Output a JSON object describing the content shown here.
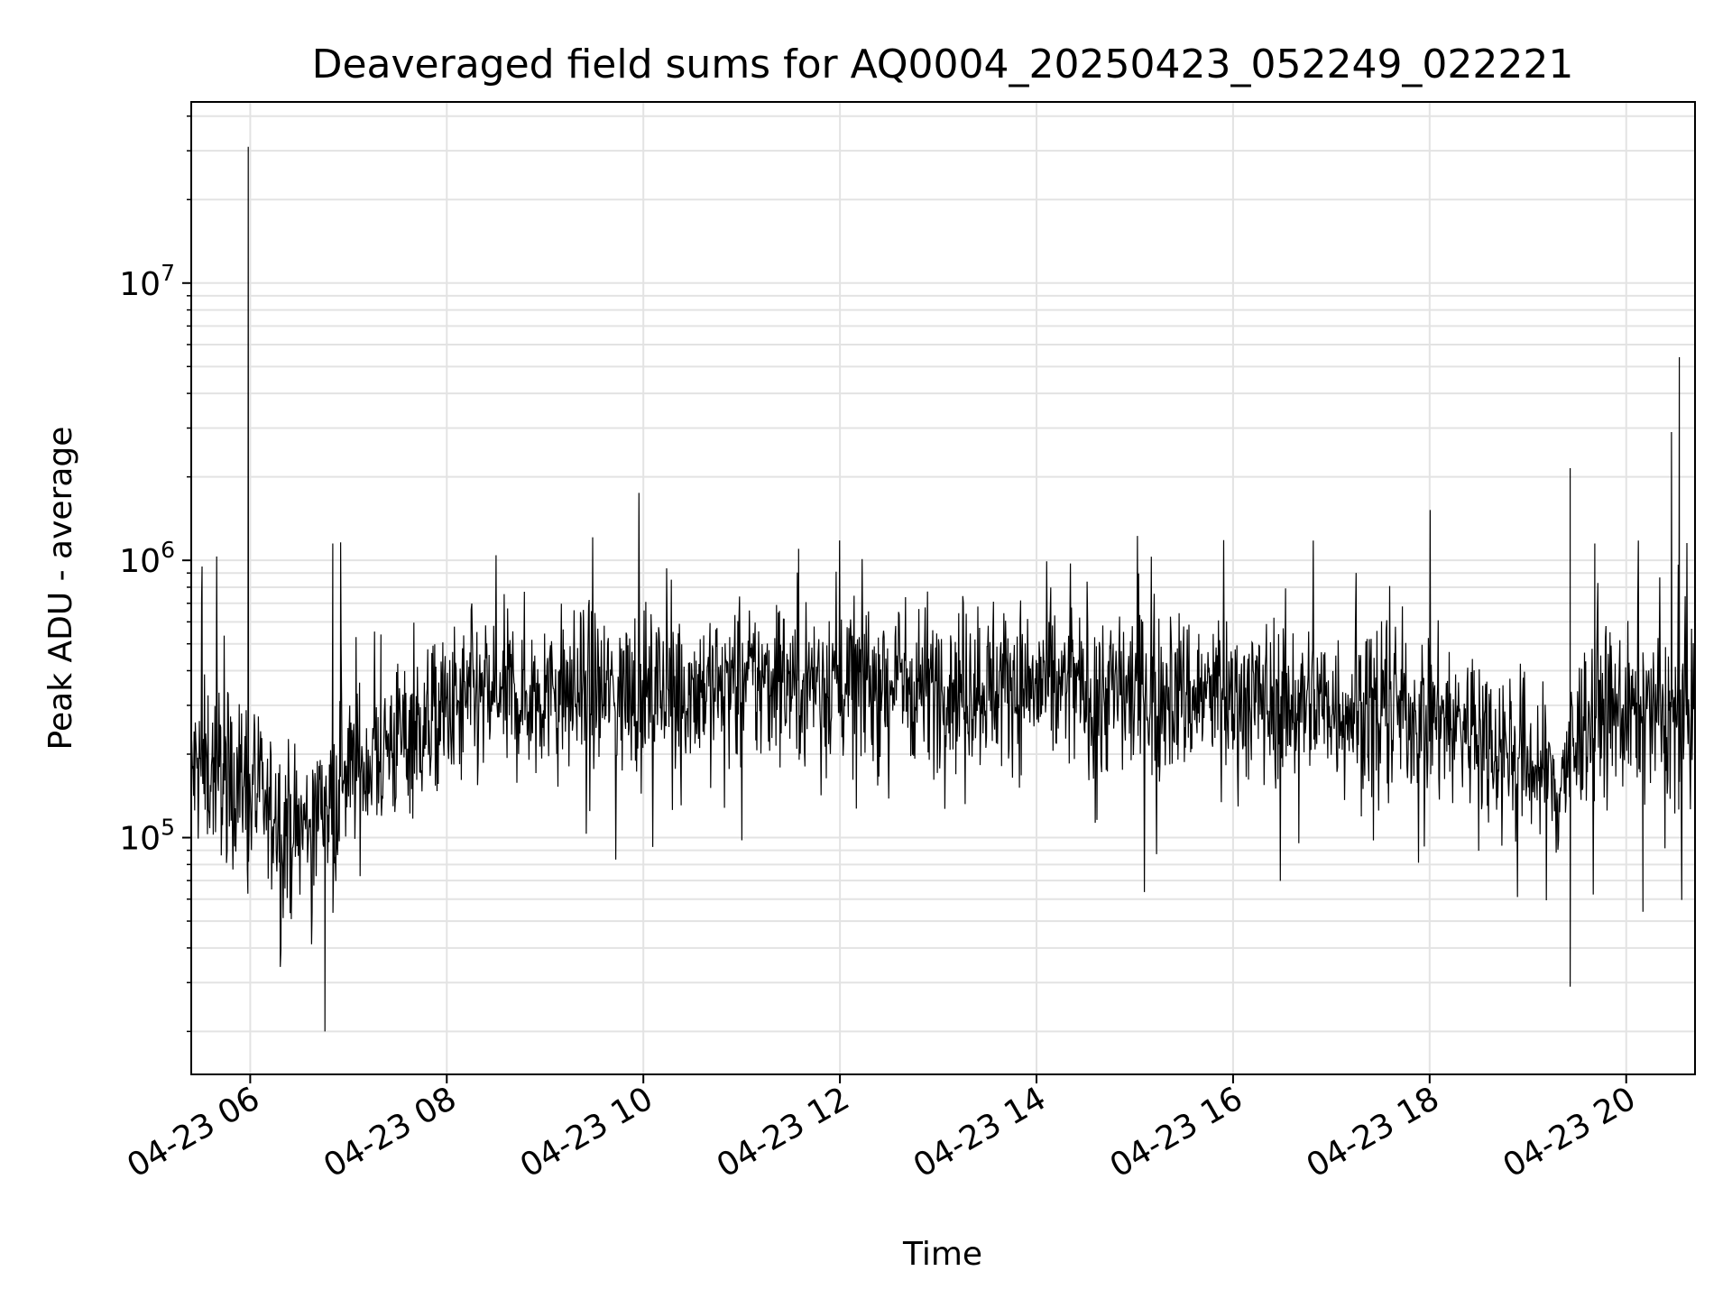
{
  "chart_data": {
    "type": "line",
    "title": "Deaveraged field sums for AQ0004_20250423_052249_022221",
    "xlabel": "Time",
    "ylabel": "Peak ADU - average",
    "x_axis": {
      "kind": "time",
      "range_hours": [
        5.4,
        20.7
      ],
      "ticks": [
        {
          "value": 6,
          "label": "04-23 06"
        },
        {
          "value": 8,
          "label": "04-23 08"
        },
        {
          "value": 10,
          "label": "04-23 10"
        },
        {
          "value": 12,
          "label": "04-23 12"
        },
        {
          "value": 14,
          "label": "04-23 14"
        },
        {
          "value": 16,
          "label": "04-23 16"
        },
        {
          "value": 18,
          "label": "04-23 18"
        },
        {
          "value": 20,
          "label": "04-23 20"
        }
      ]
    },
    "y_axis": {
      "scale": "log",
      "range": [
        14000,
        45000000
      ],
      "ticks": [
        {
          "value": 100000,
          "base": "10",
          "exp": "5"
        },
        {
          "value": 1000000,
          "base": "10",
          "exp": "6"
        },
        {
          "value": 10000000,
          "base": "10",
          "exp": "7"
        }
      ]
    },
    "grid": true,
    "series": [
      {
        "color": "#000000",
        "baseline_points": [
          [
            5.4,
            170000
          ],
          [
            5.6,
            180000
          ],
          [
            5.9,
            160000
          ],
          [
            6.2,
            120000
          ],
          [
            6.5,
            105000
          ],
          [
            6.8,
            140000
          ],
          [
            7.2,
            190000
          ],
          [
            7.6,
            240000
          ],
          [
            8.0,
            280000
          ],
          [
            8.5,
            320000
          ],
          [
            9.0,
            330000
          ],
          [
            9.5,
            330000
          ],
          [
            10.0,
            340000
          ],
          [
            10.5,
            350000
          ],
          [
            11.0,
            360000
          ],
          [
            11.5,
            370000
          ],
          [
            12.0,
            370000
          ],
          [
            12.5,
            370000
          ],
          [
            13.0,
            360000
          ],
          [
            13.5,
            360000
          ],
          [
            14.0,
            350000
          ],
          [
            14.5,
            340000
          ],
          [
            15.0,
            340000
          ],
          [
            15.5,
            330000
          ],
          [
            16.0,
            320000
          ],
          [
            16.5,
            310000
          ],
          [
            17.0,
            300000
          ],
          [
            17.5,
            290000
          ],
          [
            18.0,
            280000
          ],
          [
            18.5,
            240000
          ],
          [
            19.0,
            190000
          ],
          [
            19.3,
            150000
          ],
          [
            19.6,
            280000
          ],
          [
            20.0,
            280000
          ],
          [
            20.4,
            270000
          ],
          [
            20.7,
            280000
          ]
        ],
        "noise_spread_decades": 0.27,
        "spikes": [
          [
            5.51,
            950000
          ],
          [
            5.98,
            31000000
          ],
          [
            6.76,
            20000
          ],
          [
            6.84,
            1150000
          ],
          [
            6.92,
            1160000
          ],
          [
            7.33,
            540000
          ],
          [
            11.58,
            1100000
          ],
          [
            19.43,
            2150000
          ],
          [
            19.43,
            29000
          ],
          [
            20.46,
            2900000
          ],
          [
            20.54,
            5400000
          ],
          [
            20.17,
            54000
          ],
          [
            19.68,
            1150000
          ]
        ]
      }
    ]
  }
}
